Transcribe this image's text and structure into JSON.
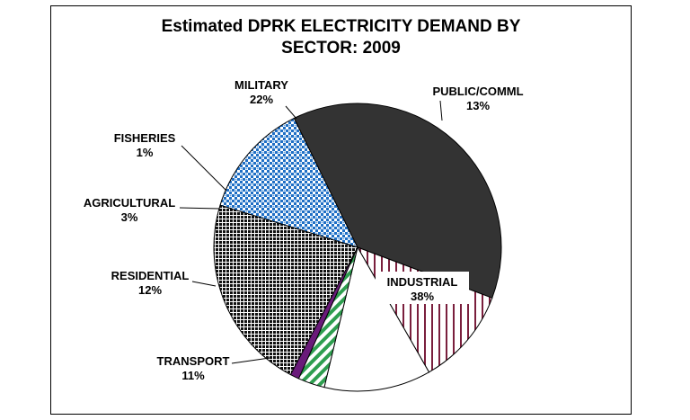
{
  "chart_data": {
    "type": "pie",
    "title": "Estimated DPRK ELECTRICITY DEMAND BY\nSECTOR: 2009",
    "slices": [
      {
        "name": "PUBLIC/COMML",
        "value": 13,
        "label": "13%",
        "color": "#1f6fc5",
        "pattern": "checker-blue"
      },
      {
        "name": "INDUSTRIAL",
        "value": 38,
        "label": "38%",
        "color": "#333333",
        "pattern": "solid-dark"
      },
      {
        "name": "TRANSPORT",
        "value": 11,
        "label": "11%",
        "color": "#7a1f3d",
        "pattern": "vertical-stripes"
      },
      {
        "name": "RESIDENTIAL",
        "value": 12,
        "label": "12%",
        "color": "#ffffff",
        "pattern": "solid-white"
      },
      {
        "name": "AGRICULTURAL",
        "value": 3,
        "label": "3%",
        "color": "#2e9e4f",
        "pattern": "diagonal-stripes"
      },
      {
        "name": "FISHERIES",
        "value": 1,
        "label": "1%",
        "color": "#6a1a7a",
        "pattern": "solid-purple"
      },
      {
        "name": "MILITARY",
        "value": 22,
        "label": "22%",
        "color": "#111111",
        "pattern": "dense-grid"
      }
    ]
  }
}
